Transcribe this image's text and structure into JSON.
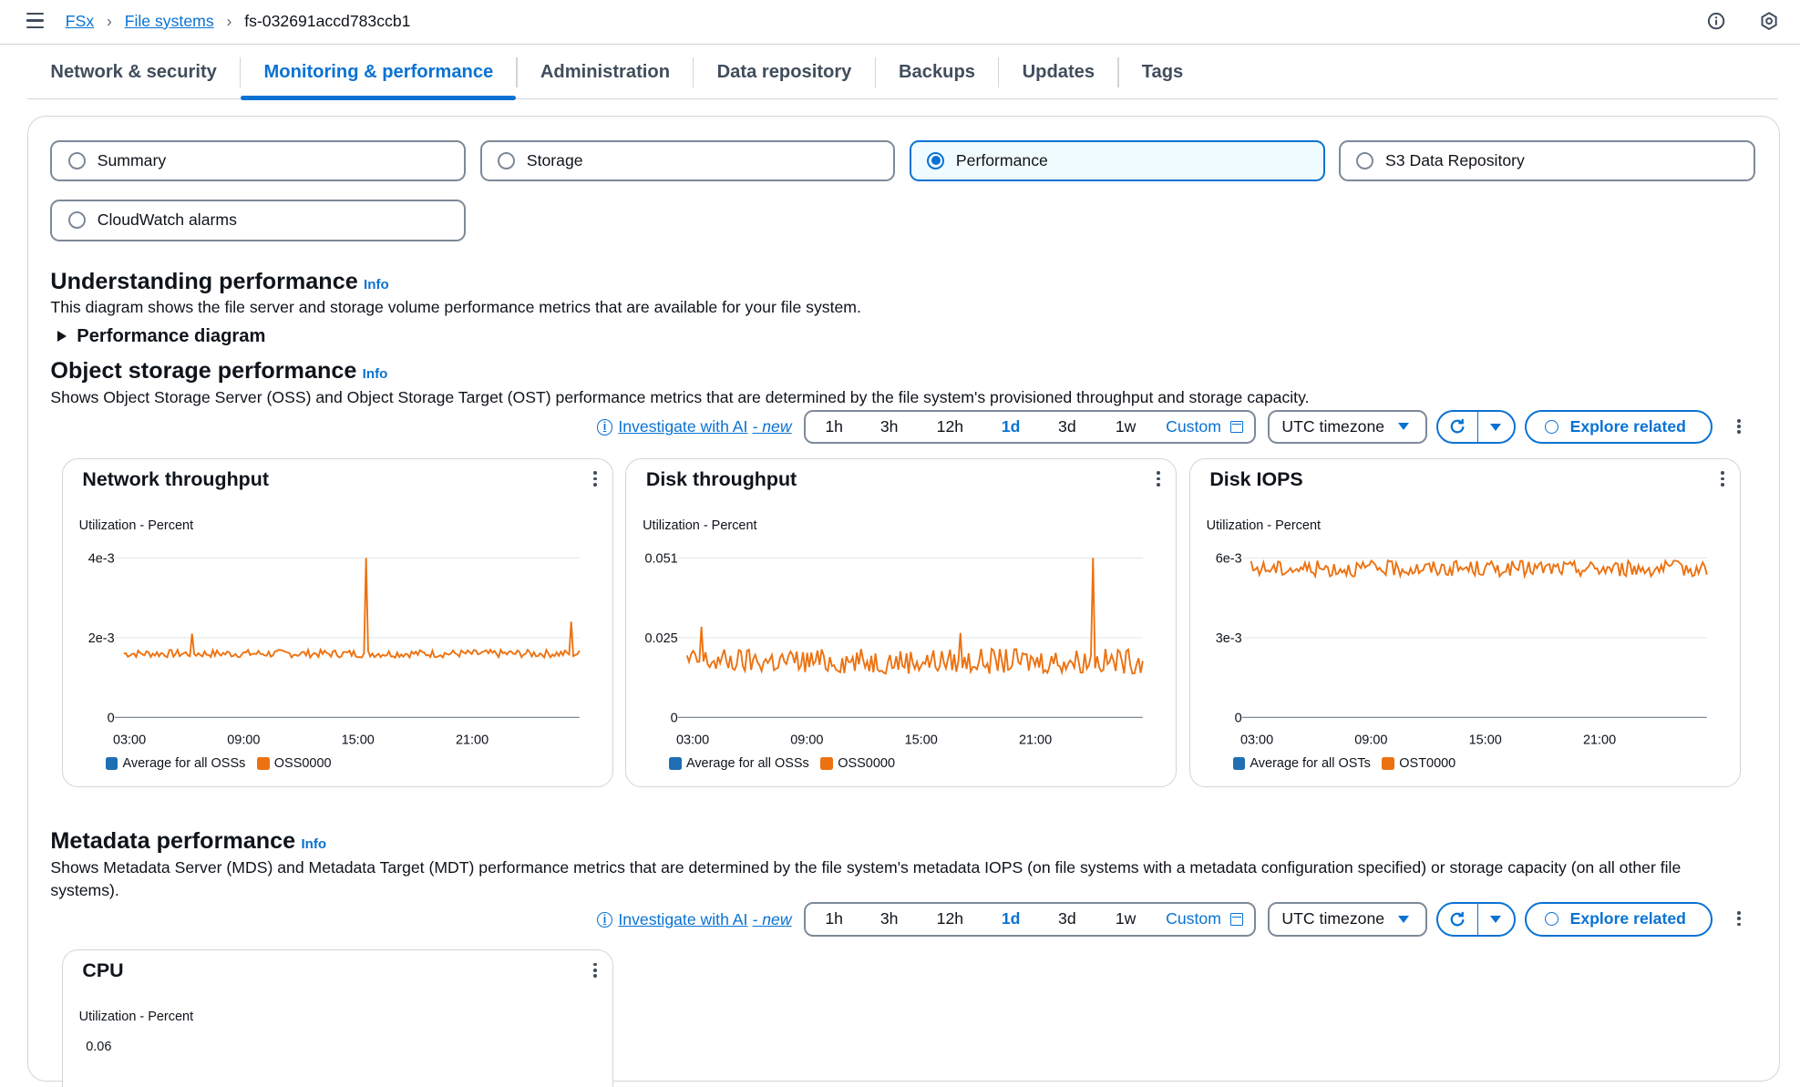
{
  "breadcrumb": {
    "root": "FSx",
    "parent": "File systems",
    "current": "fs-032691accd783ccb1"
  },
  "tabs": [
    {
      "label": "Network & security"
    },
    {
      "label": "Monitoring & performance",
      "active": true
    },
    {
      "label": "Administration"
    },
    {
      "label": "Data repository"
    },
    {
      "label": "Backups"
    },
    {
      "label": "Updates"
    },
    {
      "label": "Tags"
    }
  ],
  "views": {
    "summary": "Summary",
    "storage": "Storage",
    "performance": "Performance",
    "s3": "S3 Data Repository",
    "alarms": "CloudWatch alarms",
    "selected": "Performance"
  },
  "understanding": {
    "title": "Understanding performance",
    "info": "Info",
    "desc": "This diagram shows the file server and storage volume performance metrics that are available for your file system.",
    "expander": "Performance diagram"
  },
  "object_storage": {
    "title": "Object storage performance",
    "info": "Info",
    "desc": "Shows Object Storage Server (OSS) and Object Storage Target (OST) performance metrics that are determined by the file system's provisioned throughput and storage capacity."
  },
  "metadata": {
    "title": "Metadata performance",
    "info": "Info",
    "desc": "Shows Metadata Server (MDS) and Metadata Target (MDT) performance metrics that are determined by the file system's metadata IOPS (on file systems with a metadata configuration specified) or storage capacity (on all other file systems)."
  },
  "toolbar": {
    "investigate": "Investigate with AI",
    "investigate_new": "- new",
    "ranges": [
      "1h",
      "3h",
      "12h",
      "1d",
      "3d",
      "1w"
    ],
    "selected_range": "1d",
    "custom": "Custom",
    "timezone": "UTC timezone",
    "explore": "Explore related"
  },
  "colors": {
    "accent": "#0972d3",
    "series_avg": "#1f6fb2",
    "series_node": "#ec7211"
  },
  "chart_data": [
    {
      "type": "line",
      "title": "Network throughput",
      "ylabel": "Utilization - Percent",
      "yticks": [
        "4e-3",
        "2e-3",
        "0"
      ],
      "ylim": [
        0,
        0.004
      ],
      "xticks": [
        "03:00",
        "09:00",
        "15:00",
        "21:00"
      ],
      "legend": [
        "Average for all OSSs",
        "OSS0000"
      ],
      "series": [
        {
          "name": "OSS0000",
          "baseline": 0.0016,
          "noise": 0.0001,
          "spikes": [
            [
              0.15,
              0.0021
            ],
            [
              0.53,
              0.004
            ],
            [
              0.98,
              0.0024
            ]
          ]
        }
      ]
    },
    {
      "type": "line",
      "title": "Disk throughput",
      "ylabel": "Utilization - Percent",
      "yticks": [
        "0.051",
        "0.025",
        "0"
      ],
      "ylim": [
        0,
        0.051
      ],
      "xticks": [
        "03:00",
        "09:00",
        "15:00",
        "21:00"
      ],
      "legend": [
        "Average for all OSSs",
        "OSS0000"
      ],
      "series": [
        {
          "name": "OSS0000",
          "baseline": 0.018,
          "noise": 0.004,
          "spikes": [
            [
              0.03,
              0.029
            ],
            [
              0.6,
              0.027
            ],
            [
              0.89,
              0.051
            ]
          ]
        }
      ]
    },
    {
      "type": "line",
      "title": "Disk IOPS",
      "ylabel": "Utilization - Percent",
      "yticks": [
        "6e-3",
        "3e-3",
        "0"
      ],
      "ylim": [
        0,
        0.006
      ],
      "xticks": [
        "03:00",
        "09:00",
        "15:00",
        "21:00"
      ],
      "legend": [
        "Average for all OSTs",
        "OST0000"
      ],
      "series": [
        {
          "name": "OST0000",
          "baseline": 0.0056,
          "noise": 0.0003,
          "spikes": []
        }
      ]
    }
  ],
  "cpu_card": {
    "title": "CPU",
    "ylabel": "Utilization - Percent",
    "first_tick": "0.06"
  }
}
